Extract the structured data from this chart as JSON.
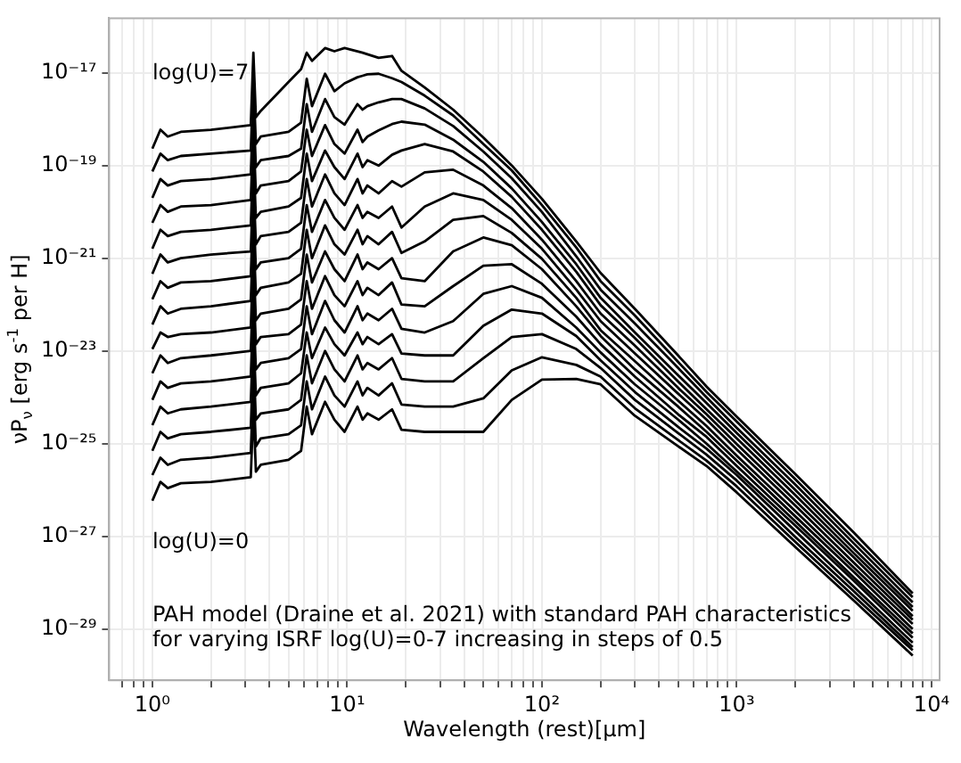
{
  "chart_data": {
    "type": "line",
    "xlabel": "Wavelength (rest)[μm]",
    "ylabel": "νP$_{ν}$ [erg s$^{-1}$ per H]",
    "annotations": [
      "log(U)=7",
      "log(U)=0",
      "PAH model (Draine et al. 2021) with standard PAH characteristics\nfor varying ISRF log(U)=0-7 increasing in steps of 0.5"
    ],
    "log": "xy",
    "grid": true,
    "legend": false,
    "marker": "none",
    "line_style": "solid",
    "xlim": [
      0.64,
      11000
    ],
    "ylim": [
      7.9e-31,
      1.5e-16
    ],
    "xticks": [
      {
        "value": 1,
        "label": "10⁰"
      },
      {
        "value": 10,
        "label": "10¹"
      },
      {
        "value": 100,
        "label": "10²"
      },
      {
        "value": 1000,
        "label": "10³"
      },
      {
        "value": 10000,
        "label": "10⁴"
      },
      {
        "value": 0.7,
        "label": null
      },
      {
        "value": 0.8,
        "label": null
      },
      {
        "value": 0.9,
        "label": null
      },
      {
        "value": 2,
        "label": null
      },
      {
        "value": 3,
        "label": null
      },
      {
        "value": 4,
        "label": null
      },
      {
        "value": 5,
        "label": null
      },
      {
        "value": 6,
        "label": null
      },
      {
        "value": 7,
        "label": null
      },
      {
        "value": 8,
        "label": null
      },
      {
        "value": 9,
        "label": null
      },
      {
        "value": 20,
        "label": null
      },
      {
        "value": 30,
        "label": null
      },
      {
        "value": 40,
        "label": null
      },
      {
        "value": 50,
        "label": null
      },
      {
        "value": 60,
        "label": null
      },
      {
        "value": 70,
        "label": null
      },
      {
        "value": 80,
        "label": null
      },
      {
        "value": 90,
        "label": null
      },
      {
        "value": 200,
        "label": null
      },
      {
        "value": 300,
        "label": null
      },
      {
        "value": 400,
        "label": null
      },
      {
        "value": 500,
        "label": null
      },
      {
        "value": 600,
        "label": null
      },
      {
        "value": 700,
        "label": null
      },
      {
        "value": 800,
        "label": null
      },
      {
        "value": 900,
        "label": null
      },
      {
        "value": 2000,
        "label": null
      },
      {
        "value": 3000,
        "label": null
      },
      {
        "value": 4000,
        "label": null
      },
      {
        "value": 5000,
        "label": null
      },
      {
        "value": 6000,
        "label": null
      },
      {
        "value": 7000,
        "label": null
      },
      {
        "value": 8000,
        "label": null
      },
      {
        "value": 9000,
        "label": null
      }
    ],
    "yticks": [
      {
        "value": 1e-29,
        "label": "10⁻²⁹"
      },
      {
        "value": 1e-27,
        "label": "10⁻²⁷"
      },
      {
        "value": 1e-25,
        "label": "10⁻²⁵"
      },
      {
        "value": 1e-23,
        "label": "10⁻²³"
      },
      {
        "value": 1e-21,
        "label": "10⁻²¹"
      },
      {
        "value": 1e-19,
        "label": "10⁻¹⁹"
      },
      {
        "value": 1e-17,
        "label": "10⁻¹⁷"
      }
    ],
    "x": [
      1,
      1.1,
      1.2,
      1.4,
      2,
      3.2,
      3.3,
      3.4,
      3.6,
      5,
      5.8,
      6.2,
      6.6,
      7.7,
      8.6,
      9.7,
      11.3,
      12,
      12.7,
      14.5,
      17,
      19,
      25,
      35,
      50,
      70,
      100,
      150,
      200,
      300,
      500,
      700,
      1000,
      2000,
      4000,
      8000
    ],
    "series": [
      {
        "color": "#000000",
        "values": [
          5.9e-27,
          1.5e-26,
          1.1e-26,
          1.4e-26,
          1.5e-26,
          1.9e-26,
          6.3e-25,
          2.5e-26,
          3.5e-26,
          4.5e-26,
          7e-26,
          6.3e-25,
          1.6e-25,
          8e-25,
          3.3e-25,
          1.8e-25,
          6.3e-25,
          3.3e-25,
          4.5e-25,
          3.3e-25,
          5.5e-25,
          2e-25,
          1.8e-25,
          1.8e-25,
          1.8e-25,
          8.8e-25,
          2.4e-24,
          2.5e-24,
          1.9e-24,
          4e-25,
          8.8e-26,
          3.3e-26,
          8.9e-27,
          5.9e-28,
          4.1e-29,
          2.7e-30
        ]
      },
      {
        "color": "#000000",
        "values": [
          2.1e-26,
          5e-26,
          3.5e-26,
          4.5e-26,
          5e-26,
          6.3e-26,
          2.2e-24,
          8.8e-26,
          1.3e-25,
          1.6e-25,
          2.5e-25,
          2.2e-24,
          5.5e-25,
          2.8e-24,
          1.1e-24,
          6.3e-25,
          2.2e-24,
          1.1e-24,
          1.6e-24,
          1.1e-24,
          2e-24,
          7e-25,
          6.3e-25,
          6.3e-25,
          9.5e-25,
          3.8e-24,
          7.3e-24,
          5e-24,
          2.8e-24,
          5.8e-25,
          1.2e-25,
          4.3e-26,
          1.2e-26,
          7.6e-28,
          5.1e-29,
          3.5e-30
        ]
      },
      {
        "color": "#000000",
        "values": [
          7e-26,
          1.8e-25,
          1.3e-25,
          1.6e-25,
          1.8e-25,
          2.2e-25,
          8e-24,
          3.3e-25,
          4.5e-25,
          5.5e-25,
          8.8e-25,
          8e-24,
          2e-24,
          1e-23,
          4e-24,
          2.2e-24,
          8e-24,
          4e-24,
          5.5e-24,
          4e-24,
          7e-24,
          2.5e-24,
          2.2e-24,
          2.2e-24,
          7e-24,
          2e-23,
          2.3e-23,
          1.1e-23,
          4.3e-24,
          8.8e-25,
          1.7e-25,
          5.8e-26,
          1.6e-26,
          9.7e-28,
          6.5e-29,
          4.1e-30
        ]
      },
      {
        "color": "#000000",
        "values": [
          2.5e-25,
          6.3e-25,
          4.5e-25,
          5.5e-25,
          6.3e-25,
          8e-25,
          2.5e-23,
          1.1e-24,
          1.6e-24,
          2e-24,
          3.3e-24,
          2.5e-23,
          7e-24,
          3.2e-23,
          1.4e-23,
          8e-24,
          2.5e-23,
          1.4e-23,
          2e-23,
          1.4e-23,
          2.3e-23,
          8.8e-24,
          8e-24,
          8e-24,
          3.5e-23,
          7.8e-23,
          6.4e-23,
          2.1e-23,
          6.3e-24,
          1.3e-24,
          2.3e-25,
          7.8e-26,
          2.1e-26,
          1.3e-27,
          8.1e-29,
          5.1e-30
        ]
      },
      {
        "color": "#000000",
        "values": [
          8.8e-25,
          2.2e-24,
          1.6e-24,
          2e-24,
          2.2e-24,
          2.8e-24,
          9.2e-23,
          4e-24,
          5.5e-24,
          7e-24,
          1.1e-23,
          9.2e-23,
          2.3e-23,
          1.2e-22,
          4.6e-23,
          2.5e-23,
          9.2e-23,
          4.6e-23,
          6.4e-23,
          4.6e-23,
          8.1e-23,
          3e-23,
          2.5e-23,
          4.4e-23,
          1.7e-22,
          2.5e-22,
          1.4e-22,
          3.2e-23,
          9.3e-24,
          1.9e-24,
          3.3e-25,
          1e-25,
          2.5e-26,
          1.7e-27,
          1.1e-28,
          6.5e-30
        ]
      },
      {
        "color": "#000000",
        "values": [
          3.3e-24,
          8e-24,
          5.5e-24,
          7e-24,
          8e-24,
          1e-23,
          3.2e-22,
          1.4e-23,
          2e-23,
          2.3e-23,
          3.7e-23,
          3.2e-22,
          8.1e-23,
          4.1e-22,
          1.6e-22,
          9.2e-23,
          3.2e-22,
          1.6e-22,
          2.3e-22,
          1.6e-22,
          3e-22,
          1e-22,
          9.2e-23,
          2.5e-22,
          6.9e-22,
          7.4e-22,
          2.8e-22,
          5.5e-23,
          1.4e-23,
          2.8e-24,
          4.3e-25,
          1.4e-25,
          3.3e-26,
          2.1e-27,
          1.3e-28,
          8.1e-30
        ]
      },
      {
        "color": "#000000",
        "values": [
          1.1e-23,
          2.5e-23,
          2e-23,
          2.3e-23,
          2.5e-23,
          3.2e-23,
          1.2e-21,
          4.6e-23,
          6.4e-23,
          8.1e-23,
          1.3e-22,
          1.2e-21,
          3e-22,
          1.4e-21,
          5.8e-22,
          3.2e-22,
          1.2e-21,
          5.8e-22,
          8.1e-22,
          5.8e-22,
          1e-21,
          3.7e-22,
          3.2e-22,
          1.4e-21,
          2.8e-21,
          1.9e-21,
          5.8e-22,
          9.2e-23,
          2.1e-23,
          4e-24,
          6.3e-25,
          1.8e-25,
          4.3e-26,
          2.7e-27,
          1.7e-28,
          1e-29
        ]
      },
      {
        "color": "#000000",
        "values": [
          3.7e-23,
          9.2e-23,
          6.4e-23,
          8.1e-23,
          9.2e-23,
          1.2e-22,
          4.1e-21,
          1.6e-22,
          2.3e-22,
          3e-22,
          4.6e-22,
          4.1e-21,
          1e-21,
          5.1e-21,
          2e-21,
          1.2e-21,
          4.1e-21,
          2e-21,
          3e-21,
          2e-21,
          3.7e-21,
          1.3e-21,
          2.3e-21,
          6.7e-21,
          8.1e-21,
          3.5e-21,
          9.7e-22,
          1.4e-22,
          2.8e-23,
          6e-24,
          8.5e-25,
          2.4e-25,
          5.5e-26,
          3.5e-27,
          2.1e-28,
          1.3e-29
        ]
      },
      {
        "color": "#000000",
        "values": [
          1.3e-22,
          3.2e-22,
          2.3e-22,
          3e-22,
          3.2e-22,
          4.1e-22,
          1.4e-20,
          5.8e-22,
          8.1e-22,
          1e-21,
          1.6e-21,
          1.4e-20,
          3.7e-21,
          1.8e-20,
          7.4e-21,
          4.1e-21,
          1.4e-20,
          7.4e-21,
          1e-20,
          7.4e-21,
          1.3e-20,
          4.6e-21,
          1.3e-20,
          2.5e-20,
          1.8e-20,
          6.7e-21,
          1.6e-21,
          2.1e-22,
          4.4e-23,
          8.8e-24,
          1.2e-24,
          3.3e-25,
          7.5e-26,
          4.6e-27,
          2.7e-28,
          1.6e-29
        ]
      },
      {
        "color": "#000000",
        "values": [
          4.6e-22,
          1.2e-21,
          8.1e-22,
          1e-21,
          1.2e-21,
          1.4e-21,
          5.1e-20,
          2e-21,
          3e-21,
          3.7e-21,
          5.8e-21,
          5.1e-20,
          1.3e-20,
          6.4e-20,
          2.5e-20,
          1.4e-20,
          5.1e-20,
          2.5e-20,
          3.7e-20,
          2.5e-20,
          4.6e-20,
          3.5e-20,
          7.1e-20,
          8.1e-20,
          3.7e-20,
          1.2e-20,
          2.5e-21,
          3.2e-22,
          6.4e-23,
          1.3e-23,
          1.6e-24,
          4.3e-25,
          9.8e-26,
          5.9e-27,
          3.5e-28,
          1.9e-29
        ]
      },
      {
        "color": "#000000",
        "values": [
          1.6e-21,
          4.1e-21,
          3e-21,
          3.7e-21,
          4.1e-21,
          5.1e-21,
          1.8e-19,
          7.4e-21,
          1e-20,
          1.3e-20,
          2e-20,
          1.8e-19,
          4.6e-20,
          2.1e-19,
          9.2e-20,
          5.1e-20,
          1.8e-19,
          9.2e-20,
          1.3e-19,
          9.9e-20,
          1.7e-19,
          2.1e-19,
          2.9e-19,
          2e-19,
          7.4e-20,
          2.1e-20,
          4.1e-21,
          5.1e-22,
          9.7e-23,
          1.9e-23,
          2.2e-24,
          5.5e-25,
          1.3e-25,
          7.8e-27,
          4.3e-28,
          2.5e-29
        ]
      },
      {
        "color": "#000000",
        "values": [
          5.8e-21,
          1.4e-20,
          1e-20,
          1.3e-20,
          1.4e-20,
          1.8e-20,
          5.9e-19,
          2.5e-20,
          3.7e-20,
          4.6e-20,
          7.4e-20,
          5.9e-19,
          1.6e-19,
          7.4e-19,
          2.9e-19,
          1.8e-19,
          5.9e-19,
          3.2e-19,
          4.2e-19,
          5.7e-19,
          7.8e-19,
          8.8e-19,
          7.6e-19,
          3.6e-19,
          1.2e-19,
          3.2e-20,
          6e-21,
          7.4e-22,
          1.4e-22,
          2.5e-23,
          3e-24,
          7.5e-25,
          1.7e-25,
          1e-26,
          5.4e-28,
          3e-29
        ]
      },
      {
        "color": "#000000",
        "values": [
          2e-20,
          5.1e-20,
          3.7e-20,
          4.6e-20,
          5.1e-20,
          6.4e-20,
          2.1e-18,
          9.2e-20,
          1.3e-19,
          1.6e-19,
          2.3e-19,
          2.1e-18,
          5.3e-19,
          2.7e-18,
          1.1e-18,
          7.6e-19,
          2.1e-18,
          1.6e-18,
          1.9e-18,
          2.3e-18,
          2.7e-18,
          2.7e-18,
          1.7e-18,
          7.1e-19,
          2e-19,
          5.3e-20,
          9.9e-21,
          1.1e-21,
          2.1e-22,
          3.9e-23,
          4.3e-24,
          1e-24,
          2.2e-25,
          1.3e-26,
          7e-28,
          3.8e-29
        ]
      },
      {
        "color": "#000000",
        "values": [
          7.4e-20,
          1.8e-19,
          1.3e-19,
          1.6e-19,
          1.8e-19,
          2.1e-19,
          7.4e-18,
          2.9e-19,
          4.2e-19,
          5.3e-19,
          8.4e-19,
          7.4e-18,
          1.9e-18,
          9.5e-18,
          4e-18,
          5.9e-18,
          8e-18,
          8.6e-18,
          9.2e-18,
          9.5e-18,
          7.6e-18,
          6.3e-18,
          3.2e-18,
          1.2e-18,
          2.9e-19,
          7.8e-20,
          1.4e-20,
          1.7e-21,
          3.2e-22,
          5.8e-23,
          5.8e-24,
          1.3e-24,
          3e-25,
          1.7e-26,
          8.9e-28,
          4.9e-29
        ]
      },
      {
        "color": "#000000",
        "values": [
          2.3e-19,
          5.9e-19,
          4.2e-19,
          5.3e-19,
          5.9e-19,
          7.4e-19,
          2.7e-17,
          1.1e-18,
          1.5e-18,
          6.3e-18,
          1.2e-17,
          2.7e-17,
          1.8e-17,
          3.4e-17,
          2.9e-17,
          3.4e-17,
          2.9e-17,
          2.7e-17,
          2.5e-17,
          2.1e-17,
          2.3e-17,
          1.1e-17,
          4.8e-18,
          1.6e-18,
          4e-19,
          1e-19,
          1.9e-20,
          2.3e-21,
          4.8e-22,
          8.1e-23,
          8e-24,
          1.7e-24,
          3.8e-25,
          2.2e-26,
          1.2e-27,
          5.9e-29
        ]
      }
    ]
  }
}
